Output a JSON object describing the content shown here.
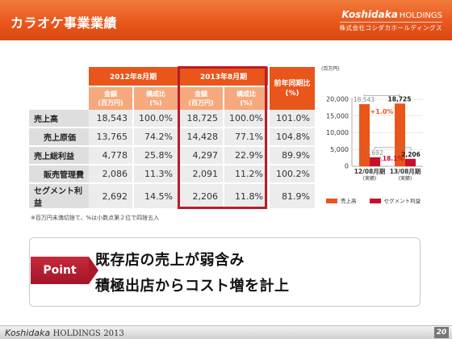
{
  "header": {
    "title": "カラオケ事業業績",
    "brand": "Koshidaka",
    "brand_holdings": "HOLDINGS",
    "brand_jp": "株式会社コシダカホールディングス"
  },
  "table": {
    "group_2012": "2012年8月期",
    "group_2013": "2013年8月期",
    "group_yoy": "前年同期比\n(%)",
    "sub_amount": "金額\n(百万円)",
    "sub_ratio": "構成比\n(%)",
    "rows": [
      {
        "label": "売上高",
        "a2012": "18,543",
        "r2012": "100.0%",
        "a2013": "18,725",
        "r2013": "100.0%",
        "yoy": "101.0%"
      },
      {
        "label": "売上原価",
        "a2012": "13,765",
        "r2012": "74.2%",
        "a2013": "14,428",
        "r2013": "77.1%",
        "yoy": "104.8%"
      },
      {
        "label": "売上総利益",
        "a2012": "4,778",
        "r2012": "25.8%",
        "a2013": "4,297",
        "r2013": "22.9%",
        "yoy": "89.9%"
      },
      {
        "label": "販売管理費",
        "a2012": "2,086",
        "r2012": "11.3%",
        "a2013": "2,091",
        "r2013": "11.2%",
        "yoy": "100.2%"
      },
      {
        "label": "セグメント利益",
        "a2012": "2,692",
        "r2012": "14.5%",
        "a2013": "2,206",
        "r2013": "11.8%",
        "yoy": "81.9%"
      }
    ],
    "note": "※百万円未満切捨て、%は小数点第２位で四捨五入"
  },
  "colors": {
    "orange": "#e9551b",
    "red": "#c8102e",
    "highlight": "#b81d2a"
  },
  "chart_data": {
    "type": "bar",
    "unit": "(百万円)",
    "categories": [
      "12/08月期\n(実績)",
      "13/08月期\n(実績)"
    ],
    "series": [
      {
        "name": "売上高",
        "values": [
          18543,
          18725
        ]
      },
      {
        "name": "セグメント利益",
        "values": [
          2692,
          2206
        ]
      }
    ],
    "y_ticks": [
      "0",
      "5,000",
      "10,000",
      "15,000",
      "20,000"
    ],
    "ylim": [
      0,
      20000
    ],
    "annotations": [
      "+1.0%",
      "△18.1%"
    ],
    "value_labels": [
      "18,543",
      "18,725",
      "2,692",
      "2,206"
    ],
    "legend": "bottom"
  },
  "point": {
    "tag": "Point",
    "line1": "既存店の売上が弱含み",
    "line2": "積極出店からコスト増を計上"
  },
  "footer": {
    "brand": "Koshidaka",
    "holdings": "HOLDINGS",
    "year": "2013",
    "page": "20"
  }
}
